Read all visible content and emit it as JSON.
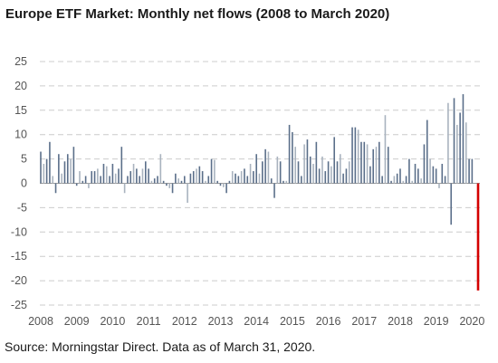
{
  "chart_data": {
    "type": "bar",
    "title": "Europe ETF Market: Monthly net flows (2008 to March 2020)",
    "source": "Source: Morningstar Direct.  Data as of March 31, 2020.",
    "xlabel": "",
    "ylabel": "",
    "ylim": [
      -25,
      25
    ],
    "yticks": [
      "25",
      "20",
      "15",
      "10",
      "5",
      "0",
      "-5",
      "-10",
      "-15",
      "-20",
      "-25"
    ],
    "xticks": [
      "2008",
      "2009",
      "2010",
      "2011",
      "2012",
      "2013",
      "2014",
      "2015",
      "2016",
      "2017",
      "2018",
      "2019",
      "2020"
    ],
    "grid": true,
    "colors": {
      "dark": "#5b6f8a",
      "light": "#a9b3bf",
      "highlight": "#d40000"
    },
    "series": [
      {
        "start": "2008-01",
        "values": [
          6.5,
          4.0,
          5.0,
          8.5,
          1.5,
          -2.0,
          6.0,
          2.0,
          4.5,
          6.0,
          5.0,
          7.5,
          -0.5,
          2.5,
          0.5,
          1.5,
          -1.0,
          2.5,
          2.5,
          3.0,
          1.5,
          4.0,
          3.5,
          1.5,
          4.0,
          2.0,
          3.0,
          7.5,
          -2.0,
          1.5,
          2.5,
          4.0,
          3.0,
          1.5,
          3.0,
          4.5,
          3.0,
          0.5,
          1.0,
          1.5,
          6.0,
          0.5,
          -0.5,
          -1.0,
          -2.0,
          2.0,
          1.0,
          0.5,
          1.5,
          -4.0,
          2.0,
          2.5,
          3.0,
          3.5,
          2.5,
          0.5,
          1.5,
          5.0,
          4.8,
          0.5,
          -0.5,
          -0.8,
          -2.0,
          0.5,
          2.5,
          2.0,
          1.5,
          2.5,
          3.0,
          1.5,
          4.0,
          2.5,
          6.0,
          2.0,
          4.5,
          7.0,
          6.5,
          1.0,
          -3.0,
          5.5,
          4.5,
          0.5,
          0.5,
          12.0,
          10.5,
          7.5,
          4.5,
          1.5,
          8.0,
          9.0,
          5.5,
          4.0,
          8.5,
          3.0,
          5.5,
          2.5,
          4.5,
          3.5,
          9.5,
          4.5,
          6.0,
          2.0,
          3.0,
          4.5,
          11.5,
          11.5,
          11.0,
          8.5,
          8.5,
          8.0,
          3.5,
          7.0,
          7.5,
          8.5,
          1.5,
          14.0,
          7.5,
          0.5,
          1.5,
          2.0,
          3.0,
          0.5,
          1.5,
          5.0,
          0.5,
          4.0,
          3.0,
          1.0,
          8.0,
          13.0,
          5.0,
          3.5,
          3.0,
          -1.0,
          4.0,
          1.5,
          16.5,
          -8.5,
          17.5,
          12.0,
          14.5,
          18.3,
          12.5,
          5.0,
          5.0,
          0.0,
          -22.0
        ]
      }
    ],
    "highlight_last": true
  }
}
